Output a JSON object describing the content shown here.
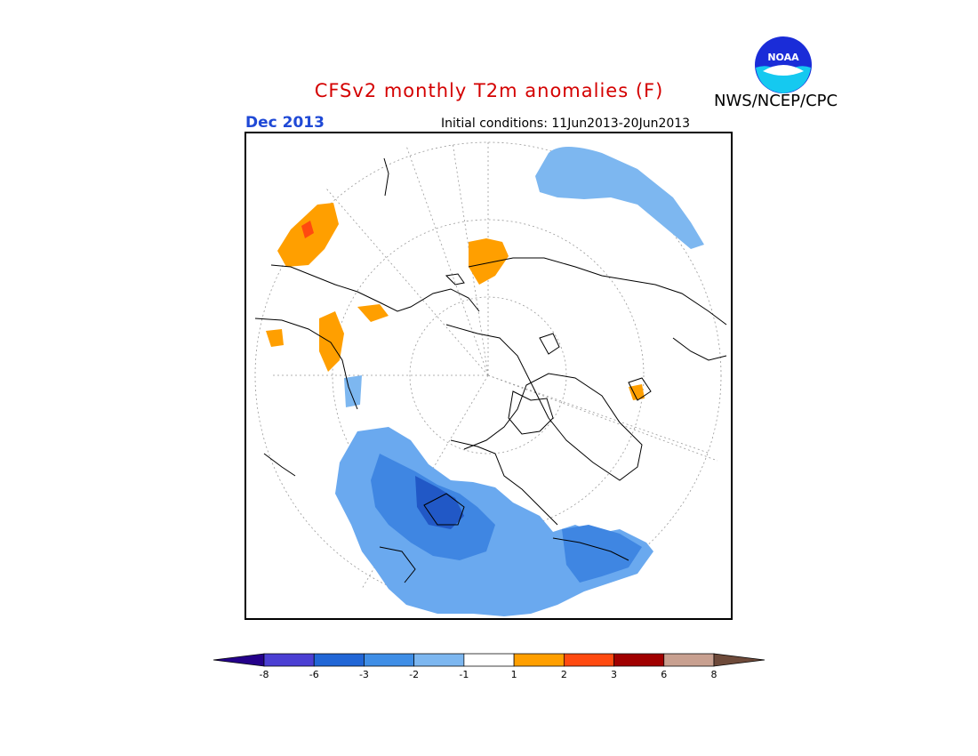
{
  "header": {
    "title": "CFSv2 monthly T2m anomalies (F)",
    "month": "Dec 2013",
    "initial_conditions": "Initial conditions: 11Jun2013-20Jun2013",
    "agency": "NWS/NCEP/CPC",
    "logo_text": "NOAA"
  },
  "colors": {
    "title": "#d40000",
    "month": "#1f49d6",
    "ocean_line": "#000000"
  },
  "colorbar": {
    "bins": [
      {
        "color": "#24008a"
      },
      {
        "color": "#4b3fd3"
      },
      {
        "color": "#2166d6"
      },
      {
        "color": "#3f8ee6"
      },
      {
        "color": "#7db7f0"
      },
      {
        "color": "#ffffff"
      },
      {
        "color": "#ff9f00"
      },
      {
        "color": "#ff4a10"
      },
      {
        "color": "#a00000"
      },
      {
        "color": "#c8a090"
      },
      {
        "color": "#6e4a3a"
      }
    ],
    "labels": [
      "-8",
      "-6",
      "-3",
      "-2",
      "-1",
      "1",
      "2",
      "3",
      "6",
      "8"
    ]
  }
}
